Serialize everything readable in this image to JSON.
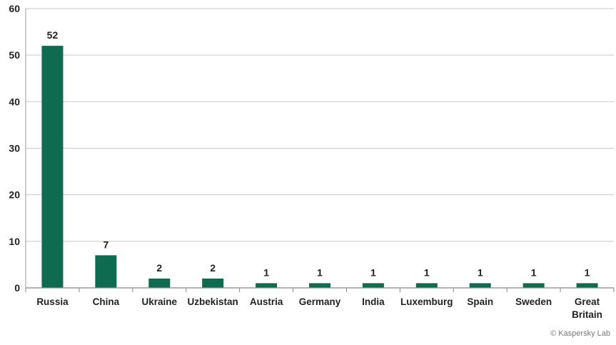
{
  "chart_data": {
    "type": "bar",
    "categories": [
      "Russia",
      "China",
      "Ukraine",
      "Uzbekistan",
      "Austria",
      "Germany",
      "India",
      "Luxemburg",
      "Spain",
      "Sweden",
      "Great Britain"
    ],
    "values": [
      52,
      7,
      2,
      2,
      1,
      1,
      1,
      1,
      1,
      1,
      1
    ],
    "ylim": [
      0,
      60
    ],
    "yticks": [
      0,
      10,
      20,
      30,
      40,
      50,
      60
    ],
    "grid": true,
    "bar_color": "#0f6b50",
    "data_labels": true
  },
  "copyright": "© Kaspersky Lab"
}
